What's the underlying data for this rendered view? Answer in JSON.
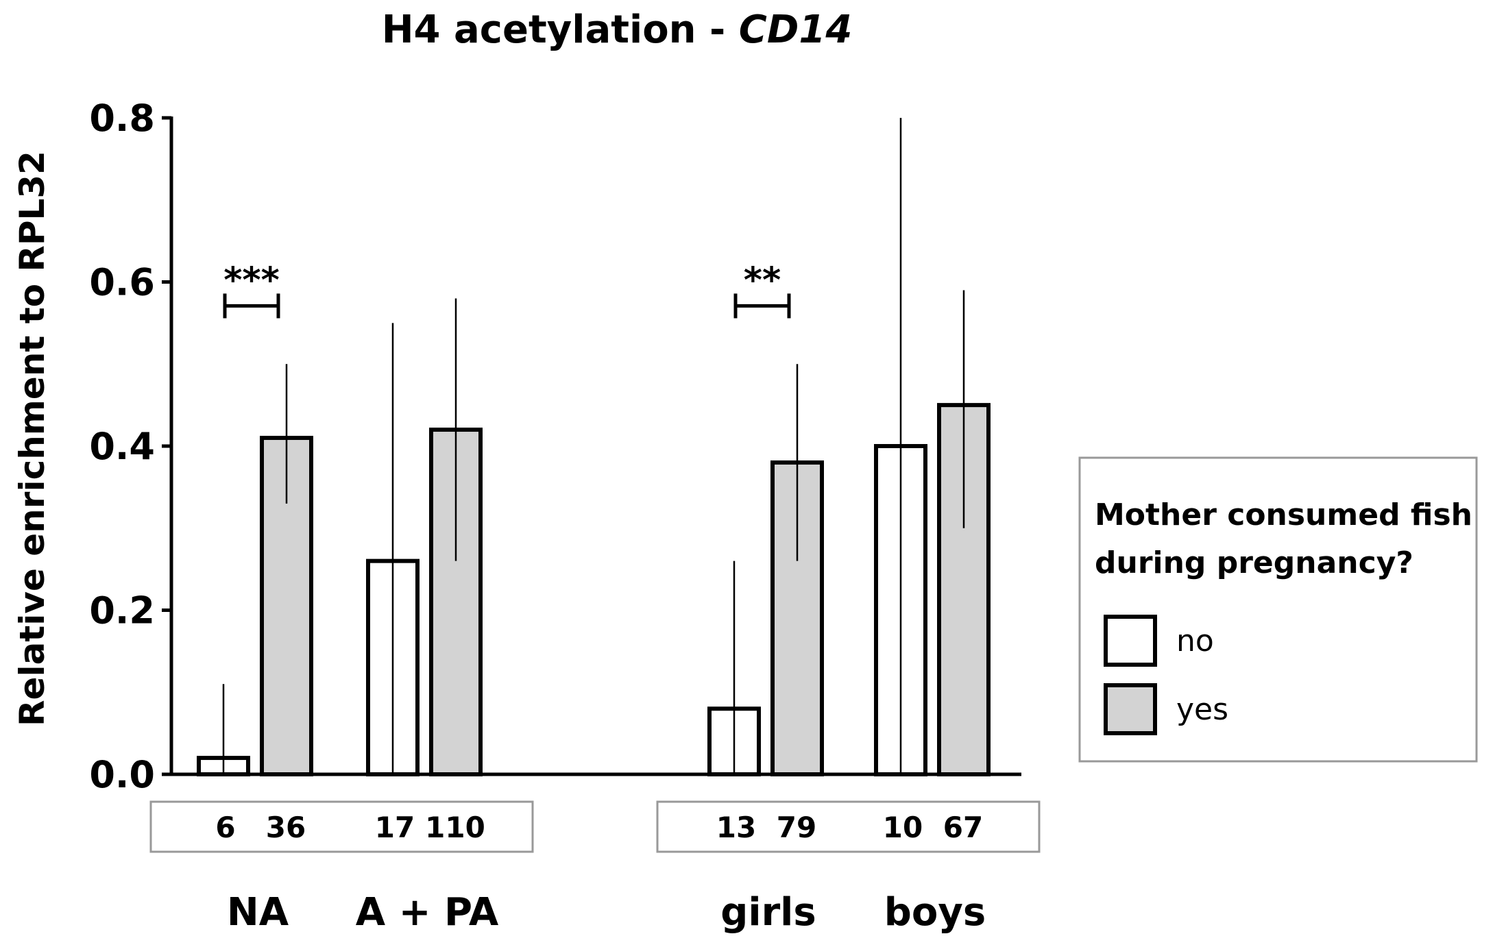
{
  "chart_data": {
    "type": "bar",
    "title_main": "H4 acetylation - ",
    "title_gene": "CD14",
    "ylabel": "Relative enrichment to RPL32",
    "xlabel": "",
    "ylim": [
      0,
      0.8
    ],
    "yticks": [
      0.0,
      0.2,
      0.4,
      0.6,
      0.8
    ],
    "ytick_labels": [
      "0.0",
      "0.2",
      "0.4",
      "0.6",
      "0.8"
    ],
    "categories": [
      "NA",
      "A + PA",
      "girls",
      "boys"
    ],
    "series": [
      {
        "name": "no",
        "color": "#ffffff",
        "values": [
          0.02,
          0.26,
          0.08,
          0.4
        ],
        "error_upper": [
          0.11,
          0.55,
          0.26,
          0.8
        ],
        "n": [
          "6",
          "17",
          "13",
          "10"
        ]
      },
      {
        "name": "yes",
        "color": "#d3d3d3",
        "values": [
          0.41,
          0.42,
          0.38,
          0.45
        ],
        "error_upper": [
          0.5,
          0.58,
          0.5,
          0.59
        ],
        "error_lower": [
          0.33,
          0.26,
          0.26,
          0.3
        ],
        "n": [
          "36",
          "110",
          "79",
          "67"
        ]
      }
    ],
    "significance": [
      {
        "category": "NA",
        "label": "***",
        "y": 0.57
      },
      {
        "category": "girls",
        "label": "**",
        "y": 0.57
      }
    ],
    "legend": {
      "title_line1": "Mother consumed fish",
      "title_line2": "during pregnancy?",
      "position": "right",
      "items": [
        "no",
        "yes"
      ]
    }
  }
}
